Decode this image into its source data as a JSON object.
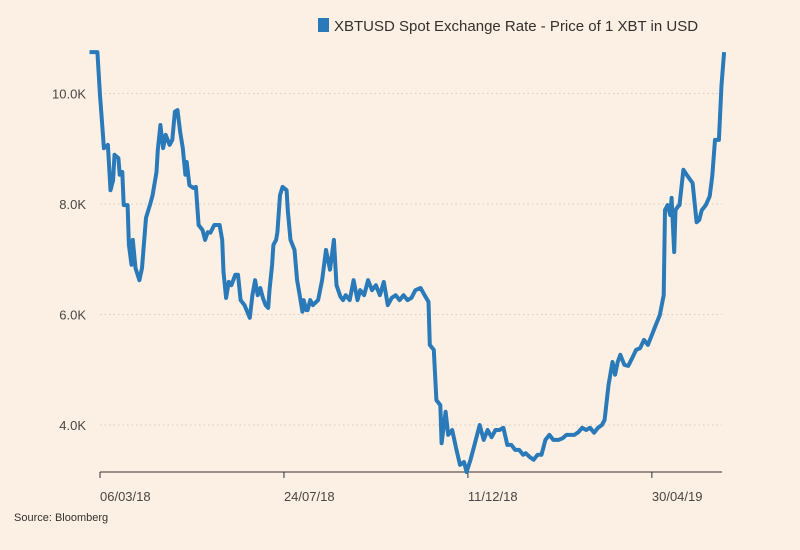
{
  "chart_data": {
    "type": "line",
    "legend": {
      "label": "XBTUSD Spot Exchange Rate - Price of 1 XBT in USD",
      "placement": "top-right",
      "color": "#2a7ab9"
    },
    "source": "Source: Bloomberg",
    "x_unit": "days since 06/03/18",
    "xlim": [
      -8,
      475
    ],
    "x_ticks": [
      {
        "day": 0,
        "label": "06/03/18"
      },
      {
        "day": 140,
        "label": "24/07/18"
      },
      {
        "day": 280,
        "label": "11/12/18"
      },
      {
        "day": 420,
        "label": "30/04/19"
      }
    ],
    "y_unit": "thousand USD",
    "ylim": [
      3.15,
      10.75
    ],
    "y_ticks": [
      {
        "value": 4,
        "label": "4.0K"
      },
      {
        "value": 6,
        "label": "6.0K"
      },
      {
        "value": 8,
        "label": "8.0K"
      },
      {
        "value": 10,
        "label": "10.0K"
      }
    ],
    "grid": "horizontal dotted",
    "series": [
      {
        "name": "XBTUSD Spot Exchange Rate - Price of 1 XBT in USD",
        "color": "#2a7ab9",
        "points": [
          [
            -8,
            10.75
          ],
          [
            -2,
            10.75
          ],
          [
            0,
            9.97
          ],
          [
            2,
            9.34
          ],
          [
            3,
            9.01
          ],
          [
            6,
            9.07
          ],
          [
            8,
            8.25
          ],
          [
            10,
            8.43
          ],
          [
            11,
            8.89
          ],
          [
            14,
            8.83
          ],
          [
            15,
            8.53
          ],
          [
            17,
            8.58
          ],
          [
            18,
            7.98
          ],
          [
            21,
            7.98
          ],
          [
            22,
            7.26
          ],
          [
            24,
            6.9
          ],
          [
            25,
            7.35
          ],
          [
            27,
            6.84
          ],
          [
            30,
            6.62
          ],
          [
            32,
            6.84
          ],
          [
            35,
            7.75
          ],
          [
            38,
            7.98
          ],
          [
            40,
            8.16
          ],
          [
            43,
            8.58
          ],
          [
            44,
            8.98
          ],
          [
            46,
            9.43
          ],
          [
            48,
            9.01
          ],
          [
            50,
            9.25
          ],
          [
            53,
            9.07
          ],
          [
            55,
            9.16
          ],
          [
            57,
            9.67
          ],
          [
            59,
            9.7
          ],
          [
            61,
            9.3
          ],
          [
            63,
            9.01
          ],
          [
            65,
            8.53
          ],
          [
            66,
            8.76
          ],
          [
            68,
            8.34
          ],
          [
            71,
            8.29
          ],
          [
            73,
            8.31
          ],
          [
            75,
            7.62
          ],
          [
            78,
            7.53
          ],
          [
            80,
            7.35
          ],
          [
            82,
            7.49
          ],
          [
            84,
            7.48
          ],
          [
            87,
            7.62
          ],
          [
            91,
            7.62
          ],
          [
            93,
            7.35
          ],
          [
            94,
            6.77
          ],
          [
            96,
            6.3
          ],
          [
            98,
            6.59
          ],
          [
            100,
            6.53
          ],
          [
            103,
            6.72
          ],
          [
            105,
            6.72
          ],
          [
            107,
            6.26
          ],
          [
            110,
            6.17
          ],
          [
            114,
            5.94
          ],
          [
            116,
            6.35
          ],
          [
            118,
            6.62
          ],
          [
            120,
            6.35
          ],
          [
            122,
            6.48
          ],
          [
            124,
            6.3
          ],
          [
            126,
            6.17
          ],
          [
            128,
            6.12
          ],
          [
            129,
            6.44
          ],
          [
            131,
            6.9
          ],
          [
            132,
            7.26
          ],
          [
            134,
            7.35
          ],
          [
            135,
            7.49
          ],
          [
            137,
            8.16
          ],
          [
            139,
            8.31
          ],
          [
            142,
            8.25
          ],
          [
            143,
            7.86
          ],
          [
            145,
            7.35
          ],
          [
            148,
            7.17
          ],
          [
            150,
            6.62
          ],
          [
            152,
            6.35
          ],
          [
            154,
            6.05
          ],
          [
            155,
            6.26
          ],
          [
            157,
            6.08
          ],
          [
            158,
            6.08
          ],
          [
            160,
            6.26
          ],
          [
            162,
            6.17
          ],
          [
            166,
            6.26
          ],
          [
            169,
            6.62
          ],
          [
            172,
            7.17
          ],
          [
            175,
            6.81
          ],
          [
            178,
            7.35
          ],
          [
            180,
            6.53
          ],
          [
            183,
            6.32
          ],
          [
            185,
            6.26
          ],
          [
            187,
            6.35
          ],
          [
            190,
            6.26
          ],
          [
            193,
            6.62
          ],
          [
            196,
            6.26
          ],
          [
            198,
            6.44
          ],
          [
            201,
            6.35
          ],
          [
            204,
            6.62
          ],
          [
            207,
            6.44
          ],
          [
            210,
            6.53
          ],
          [
            213,
            6.35
          ],
          [
            216,
            6.59
          ],
          [
            219,
            6.17
          ],
          [
            222,
            6.3
          ],
          [
            225,
            6.35
          ],
          [
            228,
            6.26
          ],
          [
            231,
            6.35
          ],
          [
            234,
            6.26
          ],
          [
            237,
            6.3
          ],
          [
            240,
            6.44
          ],
          [
            244,
            6.48
          ],
          [
            247,
            6.35
          ],
          [
            250,
            6.23
          ],
          [
            251,
            5.45
          ],
          [
            254,
            5.36
          ],
          [
            256,
            4.45
          ],
          [
            259,
            4.36
          ],
          [
            260,
            3.67
          ],
          [
            263,
            4.24
          ],
          [
            265,
            3.82
          ],
          [
            268,
            3.91
          ],
          [
            271,
            3.58
          ],
          [
            274,
            3.28
          ],
          [
            277,
            3.33
          ],
          [
            279,
            3.15
          ],
          [
            282,
            3.37
          ],
          [
            285,
            3.64
          ],
          [
            287,
            3.82
          ],
          [
            289,
            4.0
          ],
          [
            292,
            3.73
          ],
          [
            295,
            3.91
          ],
          [
            298,
            3.78
          ],
          [
            301,
            3.91
          ],
          [
            304,
            3.91
          ],
          [
            307,
            3.95
          ],
          [
            310,
            3.64
          ],
          [
            313,
            3.64
          ],
          [
            316,
            3.55
          ],
          [
            319,
            3.55
          ],
          [
            322,
            3.46
          ],
          [
            324,
            3.49
          ],
          [
            327,
            3.42
          ],
          [
            330,
            3.37
          ],
          [
            333,
            3.46
          ],
          [
            336,
            3.46
          ],
          [
            339,
            3.73
          ],
          [
            342,
            3.82
          ],
          [
            345,
            3.73
          ],
          [
            349,
            3.73
          ],
          [
            352,
            3.76
          ],
          [
            355,
            3.82
          ],
          [
            358,
            3.82
          ],
          [
            361,
            3.82
          ],
          [
            364,
            3.87
          ],
          [
            367,
            3.95
          ],
          [
            370,
            3.91
          ],
          [
            373,
            3.95
          ],
          [
            376,
            3.86
          ],
          [
            379,
            3.95
          ],
          [
            382,
            4.0
          ],
          [
            384,
            4.09
          ],
          [
            387,
            4.72
          ],
          [
            390,
            5.14
          ],
          [
            392,
            4.91
          ],
          [
            394,
            5.14
          ],
          [
            396,
            5.27
          ],
          [
            399,
            5.09
          ],
          [
            402,
            5.07
          ],
          [
            405,
            5.21
          ],
          [
            408,
            5.36
          ],
          [
            411,
            5.39
          ],
          [
            414,
            5.54
          ],
          [
            417,
            5.45
          ],
          [
            420,
            5.63
          ],
          [
            423,
            5.81
          ],
          [
            426,
            5.99
          ],
          [
            429,
            6.35
          ],
          [
            430,
            7.89
          ],
          [
            432,
            7.98
          ],
          [
            434,
            7.8
          ],
          [
            435,
            8.11
          ],
          [
            437,
            7.13
          ],
          [
            438,
            7.89
          ],
          [
            440,
            7.96
          ],
          [
            441,
            7.98
          ],
          [
            444,
            8.62
          ],
          [
            447,
            8.51
          ],
          [
            451,
            8.38
          ],
          [
            454,
            7.67
          ],
          [
            456,
            7.71
          ],
          [
            458,
            7.89
          ],
          [
            461,
            7.98
          ],
          [
            464,
            8.14
          ],
          [
            466,
            8.51
          ],
          [
            468,
            9.16
          ],
          [
            471,
            9.16
          ],
          [
            473,
            10.15
          ],
          [
            475,
            10.75
          ]
        ]
      }
    ]
  }
}
